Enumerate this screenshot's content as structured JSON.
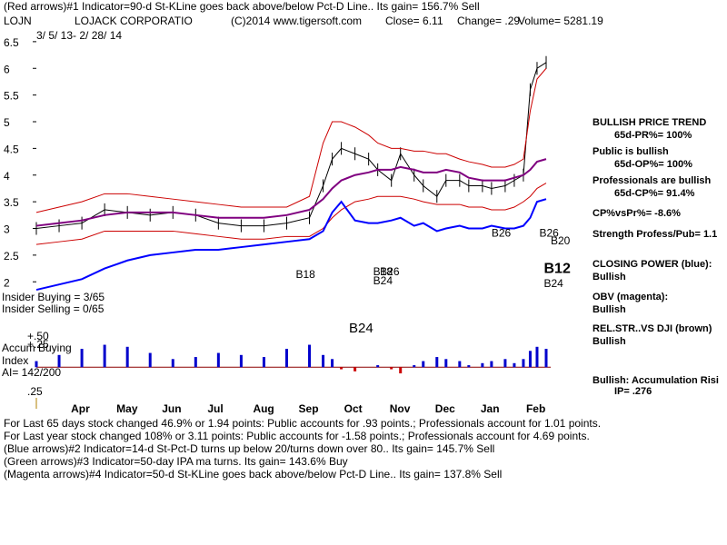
{
  "header": {
    "red_arrows_note": "(Red arrows)#1 Indicator=90-d St-KLine goes back above/below Pct-D Line.. Its gain= 156.7% Sell",
    "symbol": "LOJN",
    "company": "LOJACK CORPORATIO",
    "copyright": "(C)2014 www.tigersoft.com",
    "close": "Close=  6.11",
    "change": "Change= .29",
    "volume": "Volume= 5281.19",
    "date_range": "3/ 5/ 13- 2/ 28/ 14"
  },
  "chart_data": {
    "type": "line",
    "title": "LOJACK CORPORATIO",
    "ylim": [
      1.8,
      6.6
    ],
    "yticks": [
      "6.5",
      "6",
      "5.5",
      "5",
      "4.5",
      "4",
      "3.5",
      "3",
      "2.5",
      "2"
    ],
    "ytick_values": [
      6.5,
      6,
      5.5,
      5,
      4.5,
      4,
      3.5,
      3,
      2.5,
      2
    ],
    "xticks": [
      "Apr",
      "May",
      "Jun",
      "Jul",
      "Aug",
      "Sep",
      "Oct",
      "Nov",
      "Dec",
      "Jan",
      "Feb"
    ],
    "xtick_months": [
      1,
      2,
      3,
      4,
      5,
      6,
      7,
      8,
      9,
      10,
      11
    ],
    "x_months": [
      0,
      0.5,
      1,
      1.5,
      2,
      2.5,
      3,
      3.5,
      4,
      4.5,
      5,
      5.5,
      6,
      6.3,
      6.5,
      6.7,
      7,
      7.3,
      7.5,
      7.8,
      8,
      8.3,
      8.5,
      8.8,
      9,
      9.3,
      9.5,
      9.8,
      10,
      10.3,
      10.5,
      10.7,
      10.85,
      11,
      11.2
    ],
    "series": [
      {
        "name": "",
        "color": "#000000",
        "role": "price",
        "values": [
          3.0,
          3.05,
          3.1,
          3.35,
          3.3,
          3.25,
          3.3,
          3.25,
          3.1,
          3.05,
          3.05,
          3.1,
          3.2,
          3.8,
          4.3,
          4.5,
          4.4,
          4.3,
          4.1,
          3.9,
          4.4,
          4.0,
          3.8,
          3.6,
          3.9,
          3.9,
          3.8,
          3.8,
          3.75,
          3.8,
          3.9,
          4.0,
          5.6,
          6.0,
          6.11
        ]
      },
      {
        "name": "",
        "color": "#800080",
        "role": "moving-average",
        "values": [
          3.05,
          3.1,
          3.15,
          3.25,
          3.3,
          3.3,
          3.3,
          3.25,
          3.2,
          3.2,
          3.2,
          3.25,
          3.35,
          3.55,
          3.75,
          3.9,
          4.0,
          4.05,
          4.1,
          4.1,
          4.15,
          4.1,
          4.05,
          4.05,
          4.1,
          4.05,
          3.95,
          3.9,
          3.9,
          3.9,
          3.95,
          4.0,
          4.1,
          4.25,
          4.3
        ]
      },
      {
        "name": "",
        "color": "#cc0000",
        "role": "upper-band",
        "values": [
          3.3,
          3.4,
          3.5,
          3.65,
          3.65,
          3.6,
          3.55,
          3.5,
          3.45,
          3.4,
          3.4,
          3.4,
          3.6,
          4.6,
          5.0,
          5.0,
          4.9,
          4.75,
          4.6,
          4.5,
          4.5,
          4.45,
          4.45,
          4.4,
          4.4,
          4.3,
          4.25,
          4.2,
          4.15,
          4.15,
          4.2,
          4.3,
          5.2,
          5.8,
          6.0
        ]
      },
      {
        "name": "",
        "color": "#cc0000",
        "role": "lower-band",
        "values": [
          2.7,
          2.75,
          2.8,
          2.95,
          2.95,
          2.95,
          2.95,
          2.9,
          2.85,
          2.8,
          2.8,
          2.85,
          2.85,
          3.0,
          3.2,
          3.35,
          3.5,
          3.55,
          3.6,
          3.6,
          3.6,
          3.55,
          3.5,
          3.45,
          3.45,
          3.45,
          3.4,
          3.4,
          3.35,
          3.35,
          3.4,
          3.5,
          3.6,
          3.75,
          3.85
        ]
      },
      {
        "name": "CLOSING POWER (blue)",
        "color": "#0000ff",
        "role": "closing-power",
        "values": [
          1.85,
          1.95,
          2.05,
          2.25,
          2.4,
          2.5,
          2.55,
          2.6,
          2.6,
          2.65,
          2.7,
          2.75,
          2.8,
          2.95,
          3.3,
          3.5,
          3.15,
          3.1,
          3.1,
          3.15,
          3.2,
          3.05,
          3.1,
          2.95,
          3.0,
          3.05,
          3.0,
          3.0,
          3.05,
          3.0,
          3.0,
          3.05,
          3.2,
          3.5,
          3.55
        ]
      }
    ],
    "indicator_panel": {
      "zero_label": ".25",
      "values": [
        0.15,
        0.3,
        0.45,
        0.55,
        0.5,
        0.35,
        0.2,
        0.25,
        0.35,
        0.3,
        0.25,
        0.45,
        0.55,
        0.3,
        0.2,
        -0.05,
        -0.1,
        0.0,
        0.05,
        -0.05,
        -0.15,
        0.05,
        0.15,
        0.25,
        0.2,
        0.15,
        0.05,
        0.1,
        0.15,
        0.2,
        0.1,
        0.2,
        0.4,
        0.5,
        0.45
      ]
    },
    "annotations": [
      {
        "text": "B18",
        "x": 5.7,
        "y": 2.07
      },
      {
        "text": "B18",
        "x": 7.4,
        "y": 2.12
      },
      {
        "text": "B26",
        "x": 7.55,
        "y": 2.12
      },
      {
        "text": "B24",
        "x": 7.4,
        "y": 1.95
      },
      {
        "text": "B26",
        "x": 10.0,
        "y": 2.85
      },
      {
        "text": "B26",
        "x": 11.05,
        "y": 2.85
      },
      {
        "text": "B20",
        "x": 11.3,
        "y": 2.7
      },
      {
        "text": "B12",
        "x": 11.15,
        "y": 2.17
      },
      {
        "text": "B24",
        "x": 11.15,
        "y": 1.9
      }
    ]
  },
  "panel_labels": {
    "insider_buying": "Insider Buying = 3/65",
    "insider_selling": "Insider Selling = 0/65",
    "plus_50": "+.50",
    "plus_25": "+.25",
    "accum_line1": "Accum Buying",
    "accum_line2": "Index",
    "ai": "AI= 142/200",
    "zero_25": ".25",
    "b24_lower": "B24"
  },
  "sidebar": {
    "trend_title": "BULLISH PRICE TREND",
    "pr": "65d-PR%= 100%",
    "public": "Public is bullish",
    "op": "65d-OP%= 100%",
    "pros": "Professionals are bullish",
    "cp": "65d-CP%= 91.4%",
    "cpvspr": "CP%vsPr%= -8.6%",
    "strength": "Strength Profess/Pub= 1.1",
    "closing_power": "CLOSING POWER (blue):",
    "cp_state": "Bullish",
    "obv": "OBV (magenta):",
    "obv_state": "Bullish",
    "relstr": "REL.STR..VS DJI (brown)",
    "relstr_state": "Bullish",
    "accum": "Bullish: Accumulation Risi",
    "ip": "IP=  .276"
  },
  "footer": {
    "line1": "For Last 65 days stock changed  46.9% or  1.94 points:  Public accounts for  .93 points.;  Professionals account for  1.01 points.",
    "line2": "For Last year stock changed  108% or  3.11 points:  Public accounts for -1.58 points.;  Professionals account for  4.69 points.",
    "line3": "(Blue arrows)#2 Indicator=14-d St-Pct-D turns up below 20/turns down over 80.. Its gain= 145.7% Sell",
    "line4": "(Green arrows)#3 Indicator=50-day IPA ma turns. Its gain= 143.6% Buy",
    "line5": "(Magenta arrows)#4 Indicator=50-d St-KLine goes back above/below Pct-D Line.. Its gain= 137.8% Sell"
  }
}
